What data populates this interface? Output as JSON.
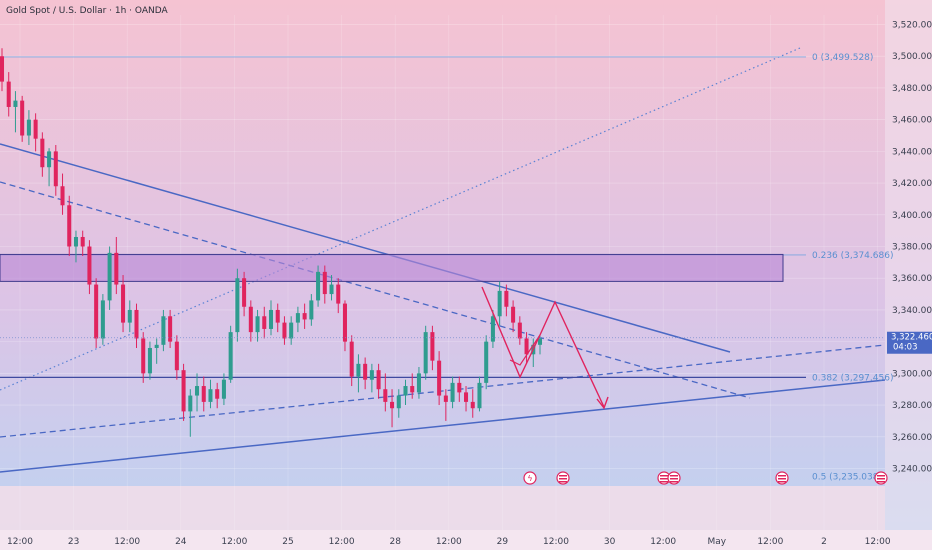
{
  "chart_data": {
    "type": "candlestick",
    "title": "Gold Spot / U.S. Dollar · 1h · OANDA",
    "ylim": [
      3234,
      3526
    ],
    "y_ticks": [
      "3,520.000",
      "3,500.000",
      "3,480.000",
      "3,460.000",
      "3,440.000",
      "3,420.000",
      "3,400.000",
      "3,380.000",
      "3,360.000",
      "3,340.000",
      "3,320.000",
      "3,300.000",
      "3,280.000",
      "3,260.000",
      "3,240.000"
    ],
    "x_ticks": [
      "12:00",
      "23",
      "12:00",
      "24",
      "12:00",
      "25",
      "12:00",
      "28",
      "12:00",
      "29",
      "12:00",
      "30",
      "12:00",
      "May",
      "12:00",
      "2",
      "12:00"
    ],
    "current_price": {
      "value": "3,322.460",
      "countdown": "04:03",
      "price": 3322.46
    },
    "fib_levels": [
      {
        "label": "0 (3,499.528)",
        "price": 3499.528
      },
      {
        "label": "0.236 (3,374.686)",
        "price": 3374.686
      },
      {
        "label": "0.382 (3,297.456)",
        "price": 3297.456
      },
      {
        "label": "0.5 (3,235.038)",
        "price": 3235.038
      }
    ],
    "zone": {
      "top": 3375,
      "bottom": 3358
    },
    "candles": [
      [
        3500,
        3505,
        3478,
        3484
      ],
      [
        3484,
        3490,
        3462,
        3468
      ],
      [
        3468,
        3478,
        3452,
        3472
      ],
      [
        3472,
        3475,
        3446,
        3450
      ],
      [
        3450,
        3466,
        3444,
        3460
      ],
      [
        3460,
        3464,
        3440,
        3448
      ],
      [
        3448,
        3452,
        3424,
        3430
      ],
      [
        3430,
        3442,
        3418,
        3440
      ],
      [
        3440,
        3444,
        3412,
        3418
      ],
      [
        3418,
        3426,
        3400,
        3406
      ],
      [
        3406,
        3412,
        3374,
        3380
      ],
      [
        3380,
        3390,
        3370,
        3386
      ],
      [
        3386,
        3390,
        3374,
        3380
      ],
      [
        3380,
        3384,
        3350,
        3356
      ],
      [
        3356,
        3360,
        3316,
        3322
      ],
      [
        3322,
        3350,
        3318,
        3346
      ],
      [
        3346,
        3380,
        3340,
        3376
      ],
      [
        3376,
        3386,
        3350,
        3356
      ],
      [
        3356,
        3362,
        3326,
        3332
      ],
      [
        3332,
        3346,
        3326,
        3340
      ],
      [
        3340,
        3344,
        3316,
        3322
      ],
      [
        3322,
        3326,
        3294,
        3300
      ],
      [
        3300,
        3320,
        3296,
        3316
      ],
      [
        3316,
        3322,
        3306,
        3318
      ],
      [
        3318,
        3340,
        3314,
        3336
      ],
      [
        3336,
        3340,
        3316,
        3320
      ],
      [
        3320,
        3324,
        3296,
        3302
      ],
      [
        3302,
        3306,
        3270,
        3276
      ],
      [
        3276,
        3290,
        3260,
        3286
      ],
      [
        3286,
        3300,
        3276,
        3292
      ],
      [
        3292,
        3298,
        3276,
        3282
      ],
      [
        3282,
        3296,
        3278,
        3290
      ],
      [
        3290,
        3294,
        3278,
        3284
      ],
      [
        3284,
        3300,
        3280,
        3296
      ],
      [
        3296,
        3330,
        3294,
        3326
      ],
      [
        3326,
        3366,
        3320,
        3360
      ],
      [
        3360,
        3364,
        3336,
        3342
      ],
      [
        3342,
        3346,
        3320,
        3326
      ],
      [
        3326,
        3340,
        3320,
        3336
      ],
      [
        3336,
        3342,
        3322,
        3328
      ],
      [
        3328,
        3346,
        3324,
        3340
      ],
      [
        3340,
        3344,
        3326,
        3332
      ],
      [
        3332,
        3336,
        3318,
        3322
      ],
      [
        3322,
        3336,
        3318,
        3332
      ],
      [
        3332,
        3342,
        3326,
        3338
      ],
      [
        3338,
        3344,
        3328,
        3334
      ],
      [
        3334,
        3350,
        3330,
        3346
      ],
      [
        3346,
        3368,
        3342,
        3364
      ],
      [
        3364,
        3368,
        3344,
        3350
      ],
      [
        3350,
        3362,
        3346,
        3356
      ],
      [
        3356,
        3360,
        3338,
        3344
      ],
      [
        3344,
        3346,
        3314,
        3320
      ],
      [
        3320,
        3324,
        3292,
        3298
      ],
      [
        3298,
        3312,
        3288,
        3306
      ],
      [
        3306,
        3310,
        3290,
        3296
      ],
      [
        3296,
        3306,
        3288,
        3302
      ],
      [
        3302,
        3306,
        3284,
        3290
      ],
      [
        3290,
        3300,
        3276,
        3282
      ],
      [
        3282,
        3290,
        3266,
        3278
      ],
      [
        3278,
        3290,
        3272,
        3286
      ],
      [
        3286,
        3296,
        3280,
        3292
      ],
      [
        3292,
        3300,
        3284,
        3288
      ],
      [
        3288,
        3304,
        3284,
        3300
      ],
      [
        3300,
        3330,
        3296,
        3326
      ],
      [
        3326,
        3330,
        3302,
        3308
      ],
      [
        3308,
        3314,
        3280,
        3286
      ],
      [
        3286,
        3290,
        3270,
        3282
      ],
      [
        3282,
        3298,
        3278,
        3294
      ],
      [
        3294,
        3298,
        3282,
        3288
      ],
      [
        3288,
        3292,
        3276,
        3282
      ],
      [
        3282,
        3290,
        3272,
        3278
      ],
      [
        3278,
        3298,
        3276,
        3294
      ],
      [
        3294,
        3324,
        3290,
        3320
      ],
      [
        3320,
        3340,
        3316,
        3336
      ],
      [
        3336,
        3358,
        3330,
        3352
      ],
      [
        3352,
        3356,
        3336,
        3342
      ],
      [
        3342,
        3346,
        3326,
        3332
      ],
      [
        3332,
        3336,
        3318,
        3322
      ],
      [
        3322,
        3326,
        3306,
        3312
      ],
      [
        3312,
        3322,
        3304,
        3318
      ],
      [
        3318,
        3324,
        3312,
        3322
      ]
    ]
  }
}
